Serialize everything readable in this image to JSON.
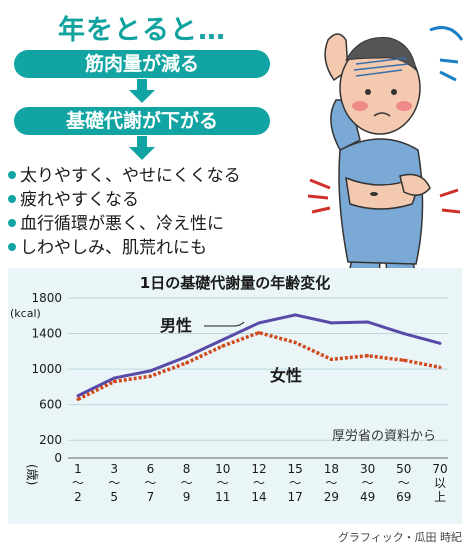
{
  "header": {
    "title": "年をとると…",
    "steps": [
      "筋肉量が減る",
      "基礎代謝が下がる"
    ]
  },
  "effects": [
    "太りやすく、やせにくくなる",
    "疲れやすくなる",
    "血行循環が悪く、冷え性に",
    "しわやしみ、肌荒れにも"
  ],
  "colors": {
    "accent": "#12a4a2",
    "male": "#5a4aa8",
    "female": "#d04a1c",
    "panel": "#e9f5f7"
  },
  "chart_data": {
    "type": "line",
    "title": "1日の基礎代謝量の年齢変化",
    "ylabel": "(kcal)",
    "xlabel": "(歳)",
    "x": [
      "1〜2",
      "3〜5",
      "6〜7",
      "8〜9",
      "10〜11",
      "12〜14",
      "15〜17",
      "18〜29",
      "30〜49",
      "50〜69",
      "70以上"
    ],
    "ylim": [
      0,
      1800
    ],
    "yticks": [
      0,
      200,
      600,
      1000,
      1400,
      1800
    ],
    "grid": "horizontal",
    "series": [
      {
        "name": "男性",
        "values": [
          700,
          900,
          980,
          1140,
          1330,
          1520,
          1610,
          1520,
          1530,
          1400,
          1290
        ]
      },
      {
        "name": "女性",
        "values": [
          660,
          860,
          920,
          1070,
          1260,
          1410,
          1300,
          1110,
          1150,
          1100,
          1020
        ]
      }
    ],
    "source": "厚労省の資料から"
  },
  "credit": "グラフィック・瓜田 時紀"
}
